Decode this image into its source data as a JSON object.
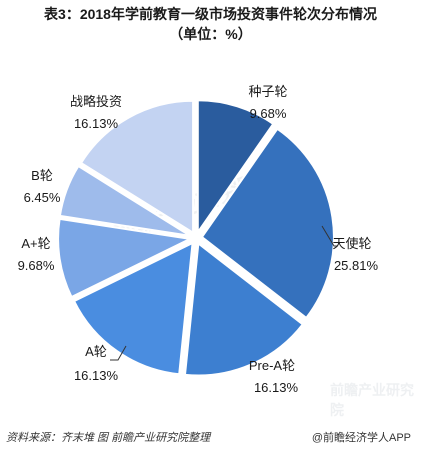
{
  "title": {
    "line1": "表3：2018年学前教育一级市场投资事件轮次分布情况",
    "line2": "（单位：%）"
  },
  "chart_data": {
    "type": "pie",
    "slices": [
      {
        "label": "种子轮",
        "value": 9.68,
        "display": "9.68%",
        "color": "#2a5c9e"
      },
      {
        "label": "天使轮",
        "value": 25.81,
        "display": "25.81%",
        "color": "#3571bd"
      },
      {
        "label": "Pre-A轮",
        "value": 16.13,
        "display": "16.13%",
        "color": "#3d7fd0"
      },
      {
        "label": "A轮",
        "value": 16.13,
        "display": "16.13%",
        "color": "#4a8de0"
      },
      {
        "label": "A+轮",
        "value": 9.68,
        "display": "9.68%",
        "color": "#7aa6e6"
      },
      {
        "label": "B轮",
        "value": 6.45,
        "display": "6.45%",
        "color": "#9ebbeb"
      },
      {
        "label": "战略投资",
        "value": 16.13,
        "display": "16.13%",
        "color": "#c3d3f2"
      }
    ]
  },
  "footer": {
    "source": "资料来源：齐末堆  图 前瞻产业研究院整理",
    "brand": "@前瞻经济学人APP"
  },
  "watermark": {
    "text": "前瞻产业研究院"
  }
}
